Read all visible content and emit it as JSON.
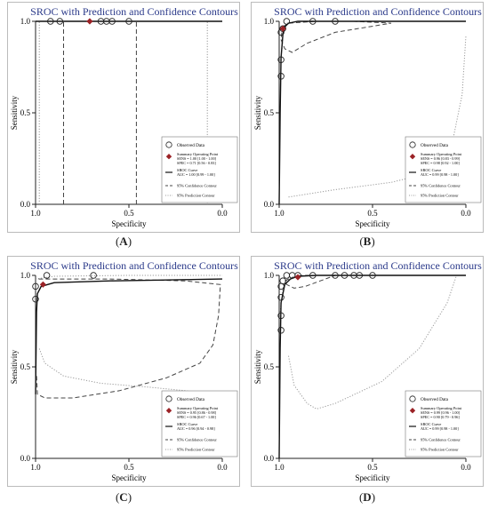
{
  "chart_data": [
    {
      "panel": "A",
      "type": "line",
      "title": "SROC with Prediction and Confidence Contours",
      "xlabel": "Specificity",
      "ylabel": "Sensitivity",
      "xlim": [
        1.0,
        0.0
      ],
      "ylim": [
        0.0,
        1.0
      ],
      "x_ticks": [
        "1.0",
        "0.5",
        "0.0"
      ],
      "y_ticks": [
        "0.0",
        "0.5",
        "1.0"
      ],
      "legend_position": "bottom-right",
      "observed_data": [
        {
          "spec": 0.92,
          "sens": 1.0
        },
        {
          "spec": 0.87,
          "sens": 1.0
        },
        {
          "spec": 0.65,
          "sens": 1.0
        },
        {
          "spec": 0.62,
          "sens": 1.0
        },
        {
          "spec": 0.59,
          "sens": 1.0
        },
        {
          "spec": 0.5,
          "sens": 1.0
        }
      ],
      "summary_point": {
        "spec": 0.71,
        "sens": 1.0
      },
      "sroc_curve": [
        [
          1.0,
          1.0
        ],
        [
          0.0,
          1.0
        ]
      ],
      "confidence_contour": [
        [
          0.85,
          0.0
        ],
        [
          0.85,
          1.0
        ],
        null,
        [
          0.46,
          0.0
        ],
        [
          0.46,
          1.0
        ]
      ],
      "prediction_contour": [
        [
          0.98,
          0.0
        ],
        [
          0.98,
          1.0
        ],
        null,
        [
          0.08,
          0.0
        ],
        [
          0.08,
          1.0
        ]
      ],
      "legend": {
        "observed": "Observed Data",
        "summary": "Summary Operating Point",
        "summary_sens": "SENS = 1.00 [1.00 - 1.00]",
        "summary_spec": "SPEC = 0.71 [0.56 - 0.83]",
        "sroc": "SROC Curve",
        "sroc_auc": "AUC = 1.00 [0.99 - 1.00]",
        "conf": "95% Confidence Contour",
        "pred": "95% Prediction Contour"
      },
      "caption_letter": "A"
    },
    {
      "panel": "B",
      "type": "line",
      "title": "SROC with Prediction and Confidence Contours",
      "xlabel": "Specificity",
      "ylabel": "Sensitivity",
      "xlim": [
        1.0,
        0.0
      ],
      "ylim": [
        0.0,
        1.0
      ],
      "x_ticks": [
        "1.0",
        "0.5",
        "0.0"
      ],
      "y_ticks": [
        "0.0",
        "0.5",
        "1.0"
      ],
      "legend_position": "bottom-right",
      "observed_data": [
        {
          "spec": 0.99,
          "sens": 0.7
        },
        {
          "spec": 0.99,
          "sens": 0.79
        },
        {
          "spec": 0.99,
          "sens": 0.94
        },
        {
          "spec": 0.98,
          "sens": 0.96
        },
        {
          "spec": 0.96,
          "sens": 1.0
        },
        {
          "spec": 0.82,
          "sens": 1.0
        },
        {
          "spec": 0.7,
          "sens": 1.0
        }
      ],
      "summary_point": {
        "spec": 0.98,
        "sens": 0.96
      },
      "sroc_curve": [
        [
          1.0,
          0.0
        ],
        [
          0.995,
          0.5
        ],
        [
          0.99,
          0.8
        ],
        [
          0.98,
          0.93
        ],
        [
          0.97,
          0.97
        ],
        [
          0.95,
          0.99
        ],
        [
          0.9,
          1.0
        ],
        [
          0.0,
          1.0
        ]
      ],
      "confidence_contour": [
        [
          0.98,
          0.97
        ],
        [
          0.95,
          0.99
        ],
        [
          0.8,
          1.0
        ],
        [
          0.6,
          1.0
        ],
        [
          0.4,
          0.99
        ],
        [
          0.7,
          0.94
        ],
        [
          0.85,
          0.88
        ],
        [
          0.93,
          0.83
        ],
        [
          0.97,
          0.85
        ],
        [
          0.99,
          0.9
        ],
        [
          0.985,
          0.95
        ],
        [
          0.98,
          0.97
        ]
      ],
      "prediction_contour": [
        [
          0.95,
          0.04
        ],
        [
          0.7,
          0.08
        ],
        [
          0.4,
          0.12
        ],
        [
          0.2,
          0.17
        ],
        [
          0.08,
          0.3
        ],
        [
          0.02,
          0.6
        ],
        [
          0.0,
          0.92
        ],
        null,
        [
          0.985,
          0.85
        ],
        [
          0.98,
          0.94
        ],
        [
          0.96,
          0.99
        ],
        [
          0.9,
          1.0
        ]
      ],
      "legend": {
        "observed": "Observed Data",
        "summary": "Summary Operating Point",
        "summary_sens": "SENS = 0.96 [0.83 - 0.99]",
        "summary_spec": "SPEC = 0.98 [0.92 - 1.00]",
        "sroc": "SROC Curve",
        "sroc_auc": "AUC = 0.99 [0.98 - 1.00]",
        "conf": "95% Confidence Contour",
        "pred": "95% Prediction Contour"
      },
      "caption_letter": "B"
    },
    {
      "panel": "C",
      "type": "line",
      "title": "SROC with Prediction and Confidence Contours",
      "xlabel": "Specificity",
      "ylabel": "Sensitivity",
      "xlim": [
        1.0,
        0.0
      ],
      "ylim": [
        0.0,
        1.0
      ],
      "x_ticks": [
        "1.0",
        "0.5",
        "0.0"
      ],
      "y_ticks": [
        "0.0",
        "0.5",
        "1.0"
      ],
      "legend_position": "bottom-right",
      "observed_data": [
        {
          "spec": 1.0,
          "sens": 0.87
        },
        {
          "spec": 1.0,
          "sens": 0.94
        },
        {
          "spec": 0.94,
          "sens": 1.0
        },
        {
          "spec": 0.69,
          "sens": 1.0
        }
      ],
      "summary_point": {
        "spec": 0.96,
        "sens": 0.95
      },
      "sroc_curve": [
        [
          1.0,
          0.35
        ],
        [
          0.995,
          0.8
        ],
        [
          0.99,
          0.9
        ],
        [
          0.97,
          0.94
        ],
        [
          0.9,
          0.96
        ],
        [
          0.6,
          0.97
        ],
        [
          0.3,
          0.975
        ],
        [
          0.0,
          0.98
        ]
      ],
      "confidence_contour": [
        [
          0.995,
          0.45
        ],
        [
          0.99,
          0.35
        ],
        [
          0.95,
          0.33
        ],
        [
          0.8,
          0.33
        ],
        [
          0.55,
          0.37
        ],
        [
          0.3,
          0.44
        ],
        [
          0.12,
          0.52
        ],
        [
          0.05,
          0.62
        ],
        [
          0.02,
          0.78
        ],
        [
          0.01,
          0.95
        ],
        [
          0.2,
          0.97
        ],
        [
          0.6,
          0.98
        ],
        [
          0.9,
          0.98
        ],
        [
          0.995,
          0.98
        ]
      ],
      "prediction_contour": [
        [
          0.98,
          0.6
        ],
        [
          0.95,
          0.52
        ],
        [
          0.85,
          0.45
        ],
        [
          0.65,
          0.41
        ],
        [
          0.4,
          0.39
        ],
        [
          0.2,
          0.37
        ],
        [
          0.05,
          0.35
        ],
        [
          0.0,
          0.34
        ],
        null,
        [
          1.0,
          0.98
        ],
        [
          0.9,
          0.995
        ],
        [
          0.5,
          1.0
        ],
        [
          0.0,
          1.0
        ]
      ],
      "legend": {
        "observed": "Observed Data",
        "summary": "Summary Operating Point",
        "summary_sens": "SENS = 0.95 [0.86 - 0.98]",
        "summary_spec": "SPEC = 0.96 [0.67 - 1.00]",
        "sroc": "SROC Curve",
        "sroc_auc": "AUC = 0.96 [0.94 - 0.98]",
        "conf": "95% Confidence Contour",
        "pred": "95% Prediction Contour"
      },
      "caption_letter": "C"
    },
    {
      "panel": "D",
      "type": "line",
      "title": "SROC with Prediction and Confidence Contours",
      "xlabel": "Specificity",
      "ylabel": "Sensitivity",
      "xlim": [
        1.0,
        0.0
      ],
      "ylim": [
        0.0,
        1.0
      ],
      "x_ticks": [
        "1.0",
        "0.5",
        "0.0"
      ],
      "y_ticks": [
        "0.0",
        "0.5",
        "1.0"
      ],
      "legend_position": "bottom-right",
      "observed_data": [
        {
          "spec": 0.99,
          "sens": 0.7
        },
        {
          "spec": 0.99,
          "sens": 0.78
        },
        {
          "spec": 0.99,
          "sens": 0.88
        },
        {
          "spec": 0.99,
          "sens": 0.94
        },
        {
          "spec": 0.98,
          "sens": 0.97
        },
        {
          "spec": 0.96,
          "sens": 1.0
        },
        {
          "spec": 0.93,
          "sens": 1.0
        },
        {
          "spec": 0.9,
          "sens": 1.0
        },
        {
          "spec": 0.82,
          "sens": 1.0
        },
        {
          "spec": 0.7,
          "sens": 1.0
        },
        {
          "spec": 0.65,
          "sens": 1.0
        },
        {
          "spec": 0.6,
          "sens": 1.0
        },
        {
          "spec": 0.57,
          "sens": 1.0
        },
        {
          "spec": 0.5,
          "sens": 1.0
        }
      ],
      "summary_point": {
        "spec": 0.9,
        "sens": 0.99
      },
      "sroc_curve": [
        [
          1.0,
          0.0
        ],
        [
          0.995,
          0.6
        ],
        [
          0.99,
          0.85
        ],
        [
          0.97,
          0.95
        ],
        [
          0.94,
          0.98
        ],
        [
          0.9,
          0.995
        ],
        [
          0.8,
          1.0
        ],
        [
          0.0,
          1.0
        ]
      ],
      "confidence_contour": [
        [
          0.97,
          0.97
        ],
        [
          0.94,
          0.985
        ],
        [
          0.88,
          1.0
        ],
        [
          0.8,
          1.0
        ],
        [
          0.7,
          1.0
        ],
        [
          0.78,
          0.97
        ],
        [
          0.86,
          0.94
        ],
        [
          0.92,
          0.93
        ],
        [
          0.96,
          0.95
        ],
        [
          0.97,
          0.97
        ]
      ],
      "prediction_contour": [
        [
          0.95,
          0.56
        ],
        [
          0.92,
          0.4
        ],
        [
          0.85,
          0.3
        ],
        [
          0.8,
          0.27
        ],
        [
          0.7,
          0.3
        ],
        [
          0.45,
          0.42
        ],
        [
          0.25,
          0.6
        ],
        [
          0.1,
          0.85
        ],
        [
          0.05,
          1.0
        ],
        null,
        [
          0.995,
          0.8
        ],
        [
          0.98,
          0.93
        ],
        [
          0.95,
          0.99
        ],
        [
          0.85,
          1.0
        ],
        [
          0.0,
          1.0
        ]
      ],
      "legend": {
        "observed": "Observed Data",
        "summary": "Summary Operating Point",
        "summary_sens": "SENS = 0.99 [0.96 - 1.00]",
        "summary_spec": "SPEC = 0.90 [0.79 - 0.96]",
        "sroc": "SROC Curve",
        "sroc_auc": "AUC = 0.99 [0.98 - 1.00]",
        "conf": "95% Confidence Contour",
        "pred": "95% Prediction Contour"
      },
      "caption_letter": "D"
    }
  ],
  "colors": {
    "title": "#2b3a8a",
    "summary_marker": "#9b2226",
    "curve": "#111111",
    "axis": "#222222"
  }
}
